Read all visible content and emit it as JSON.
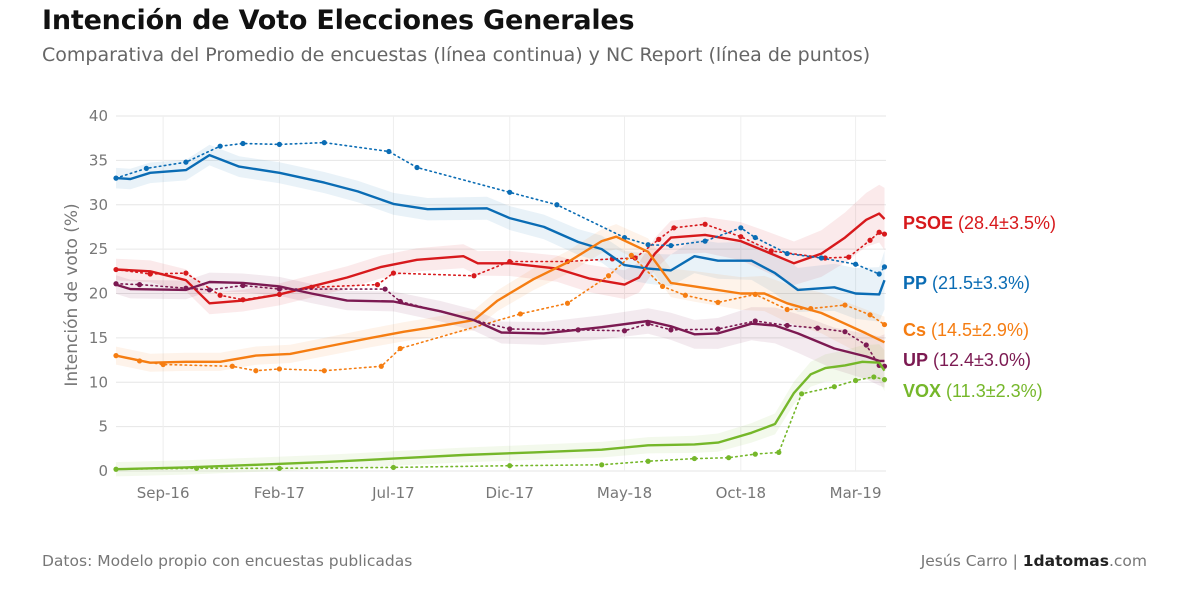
{
  "title": "Intención de Voto Elecciones Generales",
  "subtitle": "Comparativa del Promedio de encuestas (línea continua) y NC Report (línea de puntos)",
  "footer": {
    "source": "Datos: Modelo propio con encuestas publicadas",
    "author": "Jesús Carro | ",
    "brand_bold": "1datomas",
    "brand_suffix": ".com"
  },
  "chart_data": {
    "type": "line",
    "title": "Intención de Voto Elecciones Generales",
    "subtitle": "Comparativa del Promedio de encuestas (línea continua) y NC Report (línea de puntos)",
    "xlabel": "",
    "ylabel": "Intención de voto (%)",
    "ylim": [
      0,
      40
    ],
    "yticks": [
      0,
      5,
      10,
      15,
      20,
      25,
      30,
      35,
      40
    ],
    "xlim": [
      "2016-07-01",
      "2019-04-10"
    ],
    "xticks": [
      {
        "label": "Sep-16",
        "date": "2016-09-01"
      },
      {
        "label": "Feb-17",
        "date": "2017-02-01"
      },
      {
        "label": "Jul-17",
        "date": "2017-07-01"
      },
      {
        "label": "Dic-17",
        "date": "2017-12-01"
      },
      {
        "label": "May-18",
        "date": "2018-05-01"
      },
      {
        "label": "Oct-18",
        "date": "2018-10-01"
      },
      {
        "label": "Mar-19",
        "date": "2019-03-01"
      }
    ],
    "grid": true,
    "series": [
      {
        "name": "PSOE",
        "value_label": "(28.4±3.5%)",
        "color": "#d7191c",
        "band": 3.5,
        "average": [
          [
            "2016-07-01",
            22.7
          ],
          [
            "2016-08-15",
            22.5
          ],
          [
            "2016-10-01",
            21.5
          ],
          [
            "2016-11-01",
            18.9
          ],
          [
            "2016-12-15",
            19.2
          ],
          [
            "2017-02-01",
            19.9
          ],
          [
            "2017-03-15",
            20.8
          ],
          [
            "2017-05-01",
            21.8
          ],
          [
            "2017-06-15",
            23.0
          ],
          [
            "2017-08-01",
            23.8
          ],
          [
            "2017-10-01",
            24.2
          ],
          [
            "2017-10-20",
            23.4
          ],
          [
            "2017-12-01",
            23.4
          ],
          [
            "2018-02-01",
            22.8
          ],
          [
            "2018-03-15",
            21.7
          ],
          [
            "2018-05-01",
            21.0
          ],
          [
            "2018-05-20",
            21.8
          ],
          [
            "2018-06-10",
            24.5
          ],
          [
            "2018-07-01",
            26.3
          ],
          [
            "2018-08-15",
            26.6
          ],
          [
            "2018-10-01",
            25.9
          ],
          [
            "2018-11-01",
            24.8
          ],
          [
            "2018-12-10",
            23.4
          ],
          [
            "2019-01-15",
            24.5
          ],
          [
            "2019-02-15",
            26.3
          ],
          [
            "2019-03-15",
            28.3
          ],
          [
            "2019-04-01",
            29.0
          ],
          [
            "2019-04-08",
            28.4
          ]
        ],
        "nc_report": [
          [
            "2016-07-01",
            22.7
          ],
          [
            "2016-08-15",
            22.2
          ],
          [
            "2016-10-01",
            22.3
          ],
          [
            "2016-11-15",
            19.8
          ],
          [
            "2016-12-15",
            19.3
          ],
          [
            "2017-02-01",
            19.9
          ],
          [
            "2017-03-15",
            20.7
          ],
          [
            "2017-06-10",
            21.0
          ],
          [
            "2017-07-01",
            22.3
          ],
          [
            "2017-10-15",
            22.0
          ],
          [
            "2017-12-01",
            23.6
          ],
          [
            "2018-02-15",
            23.6
          ],
          [
            "2018-04-15",
            23.9
          ],
          [
            "2018-05-15",
            24.0
          ],
          [
            "2018-06-15",
            26.1
          ],
          [
            "2018-07-05",
            27.4
          ],
          [
            "2018-08-15",
            27.8
          ],
          [
            "2018-10-01",
            26.4
          ],
          [
            "2018-11-10",
            24.8
          ],
          [
            "2019-01-20",
            24.0
          ],
          [
            "2019-02-20",
            24.1
          ],
          [
            "2019-03-20",
            26.0
          ],
          [
            "2019-04-01",
            26.9
          ],
          [
            "2019-04-08",
            26.7
          ]
        ]
      },
      {
        "name": "PP",
        "value_label": "(21.5±3.3%)",
        "color": "#0a6cb4",
        "band": 3.3,
        "average": [
          [
            "2016-07-01",
            33.0
          ],
          [
            "2016-07-20",
            32.9
          ],
          [
            "2016-08-15",
            33.6
          ],
          [
            "2016-10-01",
            33.9
          ],
          [
            "2016-11-01",
            35.6
          ],
          [
            "2016-12-10",
            34.3
          ],
          [
            "2017-02-01",
            33.6
          ],
          [
            "2017-04-01",
            32.5
          ],
          [
            "2017-05-15",
            31.5
          ],
          [
            "2017-07-01",
            30.1
          ],
          [
            "2017-08-15",
            29.5
          ],
          [
            "2017-11-01",
            29.6
          ],
          [
            "2017-12-01",
            28.5
          ],
          [
            "2018-01-15",
            27.5
          ],
          [
            "2018-03-01",
            25.8
          ],
          [
            "2018-04-01",
            25.0
          ],
          [
            "2018-05-01",
            23.2
          ],
          [
            "2018-06-01",
            22.8
          ],
          [
            "2018-07-01",
            22.6
          ],
          [
            "2018-08-01",
            24.2
          ],
          [
            "2018-09-01",
            23.7
          ],
          [
            "2018-10-15",
            23.7
          ],
          [
            "2018-11-15",
            22.3
          ],
          [
            "2018-12-15",
            20.4
          ],
          [
            "2019-02-01",
            20.7
          ],
          [
            "2019-03-01",
            20.0
          ],
          [
            "2019-04-01",
            19.9
          ],
          [
            "2019-04-08",
            21.5
          ]
        ],
        "nc_report": [
          [
            "2016-07-01",
            33.0
          ],
          [
            "2016-08-10",
            34.1
          ],
          [
            "2016-10-01",
            34.8
          ],
          [
            "2016-11-15",
            36.6
          ],
          [
            "2016-12-15",
            36.9
          ],
          [
            "2017-02-01",
            36.8
          ],
          [
            "2017-04-01",
            37.0
          ],
          [
            "2017-06-25",
            36.0
          ],
          [
            "2017-08-01",
            34.2
          ],
          [
            "2017-12-01",
            31.4
          ],
          [
            "2018-02-01",
            30.0
          ],
          [
            "2018-05-01",
            26.3
          ],
          [
            "2018-06-01",
            25.5
          ],
          [
            "2018-07-01",
            25.4
          ],
          [
            "2018-08-15",
            25.9
          ],
          [
            "2018-10-01",
            27.4
          ],
          [
            "2018-10-20",
            26.3
          ],
          [
            "2018-12-01",
            24.5
          ],
          [
            "2019-01-15",
            24.0
          ],
          [
            "2019-03-01",
            23.3
          ],
          [
            "2019-04-01",
            22.2
          ],
          [
            "2019-04-08",
            23.0
          ]
        ]
      },
      {
        "name": "Cs",
        "value_label": "(14.5±2.9%)",
        "color": "#f57d12",
        "band": 2.9,
        "average": [
          [
            "2016-07-01",
            13.0
          ],
          [
            "2016-08-15",
            12.2
          ],
          [
            "2016-10-01",
            12.3
          ],
          [
            "2016-11-15",
            12.3
          ],
          [
            "2017-01-01",
            13.0
          ],
          [
            "2017-02-15",
            13.2
          ],
          [
            "2017-04-15",
            14.2
          ],
          [
            "2017-06-01",
            15.0
          ],
          [
            "2017-07-15",
            15.7
          ],
          [
            "2017-08-15",
            16.1
          ],
          [
            "2017-10-15",
            17.0
          ],
          [
            "2017-11-15",
            19.2
          ],
          [
            "2018-01-01",
            21.6
          ],
          [
            "2018-02-15",
            23.5
          ],
          [
            "2018-04-01",
            25.9
          ],
          [
            "2018-04-20",
            26.4
          ],
          [
            "2018-06-01",
            24.7
          ],
          [
            "2018-07-01",
            21.2
          ],
          [
            "2018-08-01",
            20.8
          ],
          [
            "2018-10-01",
            20.0
          ],
          [
            "2018-11-01",
            20.0
          ],
          [
            "2018-12-01",
            18.9
          ],
          [
            "2019-01-15",
            17.8
          ],
          [
            "2019-02-15",
            16.6
          ],
          [
            "2019-03-15",
            15.5
          ],
          [
            "2019-04-08",
            14.5
          ]
        ],
        "nc_report": [
          [
            "2016-07-01",
            13.0
          ],
          [
            "2016-08-01",
            12.4
          ],
          [
            "2016-09-01",
            12.0
          ],
          [
            "2016-12-01",
            11.8
          ],
          [
            "2017-01-01",
            11.3
          ],
          [
            "2017-02-01",
            11.5
          ],
          [
            "2017-04-01",
            11.3
          ],
          [
            "2017-06-15",
            11.8
          ],
          [
            "2017-07-10",
            13.8
          ],
          [
            "2017-12-15",
            17.7
          ],
          [
            "2018-02-15",
            18.9
          ],
          [
            "2018-04-10",
            22.0
          ],
          [
            "2018-05-10",
            24.3
          ],
          [
            "2018-06-20",
            20.8
          ],
          [
            "2018-07-20",
            19.8
          ],
          [
            "2018-09-01",
            19.0
          ],
          [
            "2018-10-20",
            19.9
          ],
          [
            "2018-12-01",
            18.2
          ],
          [
            "2019-01-01",
            18.3
          ],
          [
            "2019-02-15",
            18.7
          ],
          [
            "2019-03-20",
            17.6
          ],
          [
            "2019-04-08",
            16.5
          ]
        ]
      },
      {
        "name": "UP",
        "value_label": "(12.4±3.0%)",
        "color": "#7c1a52",
        "band": 3.0,
        "average": [
          [
            "2016-07-01",
            21.0
          ],
          [
            "2016-07-20",
            20.5
          ],
          [
            "2016-10-01",
            20.4
          ],
          [
            "2016-11-01",
            21.3
          ],
          [
            "2016-12-15",
            21.2
          ],
          [
            "2017-02-01",
            20.8
          ],
          [
            "2017-03-15",
            20.0
          ],
          [
            "2017-05-01",
            19.2
          ],
          [
            "2017-07-01",
            19.1
          ],
          [
            "2017-09-01",
            18.0
          ],
          [
            "2017-10-15",
            17.0
          ],
          [
            "2017-11-20",
            15.6
          ],
          [
            "2018-01-15",
            15.5
          ],
          [
            "2018-04-01",
            16.2
          ],
          [
            "2018-06-01",
            16.9
          ],
          [
            "2018-07-01",
            16.3
          ],
          [
            "2018-08-01",
            15.4
          ],
          [
            "2018-09-01",
            15.5
          ],
          [
            "2018-10-15",
            16.6
          ],
          [
            "2018-11-15",
            16.4
          ],
          [
            "2018-12-15",
            15.5
          ],
          [
            "2019-02-01",
            13.8
          ],
          [
            "2019-03-15",
            12.9
          ],
          [
            "2019-04-01",
            12.4
          ],
          [
            "2019-04-08",
            12.4
          ]
        ],
        "nc_report": [
          [
            "2016-07-01",
            21.1
          ],
          [
            "2016-08-01",
            21.0
          ],
          [
            "2016-10-01",
            20.6
          ],
          [
            "2016-11-01",
            20.4
          ],
          [
            "2016-12-15",
            20.9
          ],
          [
            "2017-02-01",
            20.5
          ],
          [
            "2017-06-20",
            20.5
          ],
          [
            "2017-07-10",
            19.1
          ],
          [
            "2017-12-01",
            16.0
          ],
          [
            "2018-03-01",
            15.9
          ],
          [
            "2018-05-01",
            15.8
          ],
          [
            "2018-06-01",
            16.6
          ],
          [
            "2018-07-01",
            15.9
          ],
          [
            "2018-09-01",
            16.0
          ],
          [
            "2018-10-20",
            16.9
          ],
          [
            "2018-12-01",
            16.4
          ],
          [
            "2019-01-10",
            16.1
          ],
          [
            "2019-02-15",
            15.7
          ],
          [
            "2019-03-15",
            14.2
          ],
          [
            "2019-04-01",
            11.9
          ],
          [
            "2019-04-08",
            11.8
          ]
        ]
      },
      {
        "name": "VOX",
        "value_label": "(11.3±2.3%)",
        "color": "#75b72a",
        "band": 2.3,
        "average": [
          [
            "2016-07-01",
            0.2
          ],
          [
            "2016-10-01",
            0.4
          ],
          [
            "2017-01-01",
            0.7
          ],
          [
            "2017-04-01",
            1.0
          ],
          [
            "2017-07-01",
            1.4
          ],
          [
            "2017-10-01",
            1.8
          ],
          [
            "2018-01-01",
            2.1
          ],
          [
            "2018-04-01",
            2.4
          ],
          [
            "2018-06-01",
            2.9
          ],
          [
            "2018-08-01",
            3.0
          ],
          [
            "2018-09-01",
            3.2
          ],
          [
            "2018-10-15",
            4.3
          ],
          [
            "2018-11-15",
            5.3
          ],
          [
            "2018-12-10",
            8.8
          ],
          [
            "2019-01-01",
            10.9
          ],
          [
            "2019-01-20",
            11.6
          ],
          [
            "2019-02-15",
            11.9
          ],
          [
            "2019-03-10",
            12.3
          ],
          [
            "2019-04-01",
            12.2
          ],
          [
            "2019-04-08",
            11.3
          ]
        ],
        "nc_report": [
          [
            "2016-07-01",
            0.2
          ],
          [
            "2016-10-15",
            0.3
          ],
          [
            "2017-02-01",
            0.3
          ],
          [
            "2017-07-01",
            0.4
          ],
          [
            "2017-12-01",
            0.6
          ],
          [
            "2018-04-01",
            0.7
          ],
          [
            "2018-06-01",
            1.1
          ],
          [
            "2018-08-01",
            1.4
          ],
          [
            "2018-09-15",
            1.5
          ],
          [
            "2018-10-20",
            1.9
          ],
          [
            "2018-11-20",
            2.1
          ],
          [
            "2018-12-20",
            8.7
          ],
          [
            "2019-02-01",
            9.5
          ],
          [
            "2019-03-01",
            10.2
          ],
          [
            "2019-03-25",
            10.6
          ],
          [
            "2019-04-08",
            10.3
          ]
        ]
      }
    ]
  }
}
